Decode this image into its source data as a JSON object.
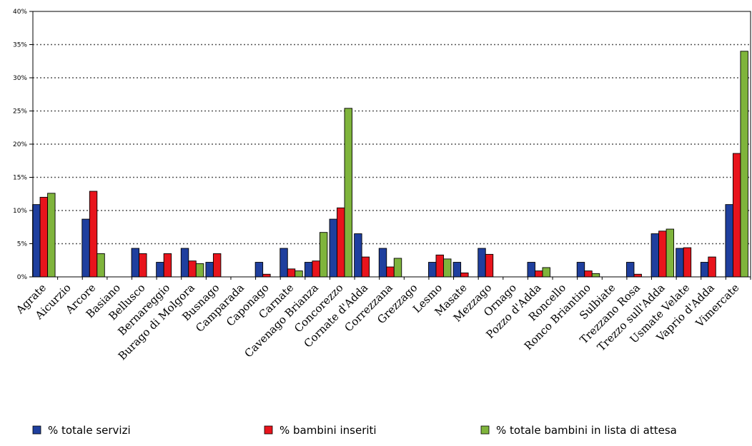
{
  "chart_data": {
    "type": "bar",
    "title": "",
    "xlabel": "",
    "ylabel": "",
    "ylim": [
      0,
      40
    ],
    "yticks": [
      "0%",
      "5%",
      "10%",
      "15%",
      "20%",
      "25%",
      "30%",
      "35%",
      "40%"
    ],
    "grid": true,
    "legend_position": "bottom",
    "categories": [
      "Agrate",
      "Aicurzio",
      "Arcore",
      "Basiano",
      "Bellusco",
      "Bernareggio",
      "Burago di Molgora",
      "Busnago",
      "Camparada",
      "Caponago",
      "Carnate",
      "Cavenago Brianza",
      "Concorezzo",
      "Cornate d'Adda",
      "Correzzana",
      "Grezzago",
      "Lesmo",
      "Masate",
      "Mezzago",
      "Ornago",
      "Pozzo d'Adda",
      "Roncello",
      "Ronco Briantino",
      "Sulbiate",
      "Trezzano Rosa",
      "Trezzo sull'Adda",
      "Usmate Velate",
      "Vaprio d'Adda",
      "Vimercate"
    ],
    "series": [
      {
        "name": "% totale servizi",
        "color": "#1f3f9e",
        "values": [
          10.9,
          0,
          8.7,
          0,
          4.3,
          2.2,
          4.3,
          2.2,
          0,
          2.2,
          4.3,
          2.2,
          8.7,
          6.5,
          4.3,
          0,
          2.2,
          2.2,
          4.3,
          0,
          2.2,
          0,
          2.2,
          0,
          2.2,
          6.5,
          4.3,
          2.2,
          10.9
        ]
      },
      {
        "name": "%  bambini inseriti",
        "color": "#e8141c",
        "values": [
          12.0,
          0,
          12.9,
          0,
          3.5,
          3.5,
          2.4,
          3.5,
          0,
          0.4,
          1.2,
          2.4,
          10.4,
          3.0,
          1.5,
          0,
          3.3,
          0.6,
          3.4,
          0,
          0.9,
          0,
          0.9,
          0,
          0.4,
          6.9,
          4.4,
          3.0,
          18.6
        ]
      },
      {
        "name": "% totale bambini in lista di attesa",
        "color": "#7fb43c",
        "values": [
          12.6,
          0,
          3.5,
          0,
          0,
          0,
          2.0,
          0,
          0,
          0,
          0.9,
          6.7,
          25.4,
          0,
          2.8,
          0,
          2.7,
          0,
          0,
          0,
          1.4,
          0,
          0.5,
          0,
          0,
          7.2,
          0,
          0,
          34.0
        ]
      }
    ]
  }
}
